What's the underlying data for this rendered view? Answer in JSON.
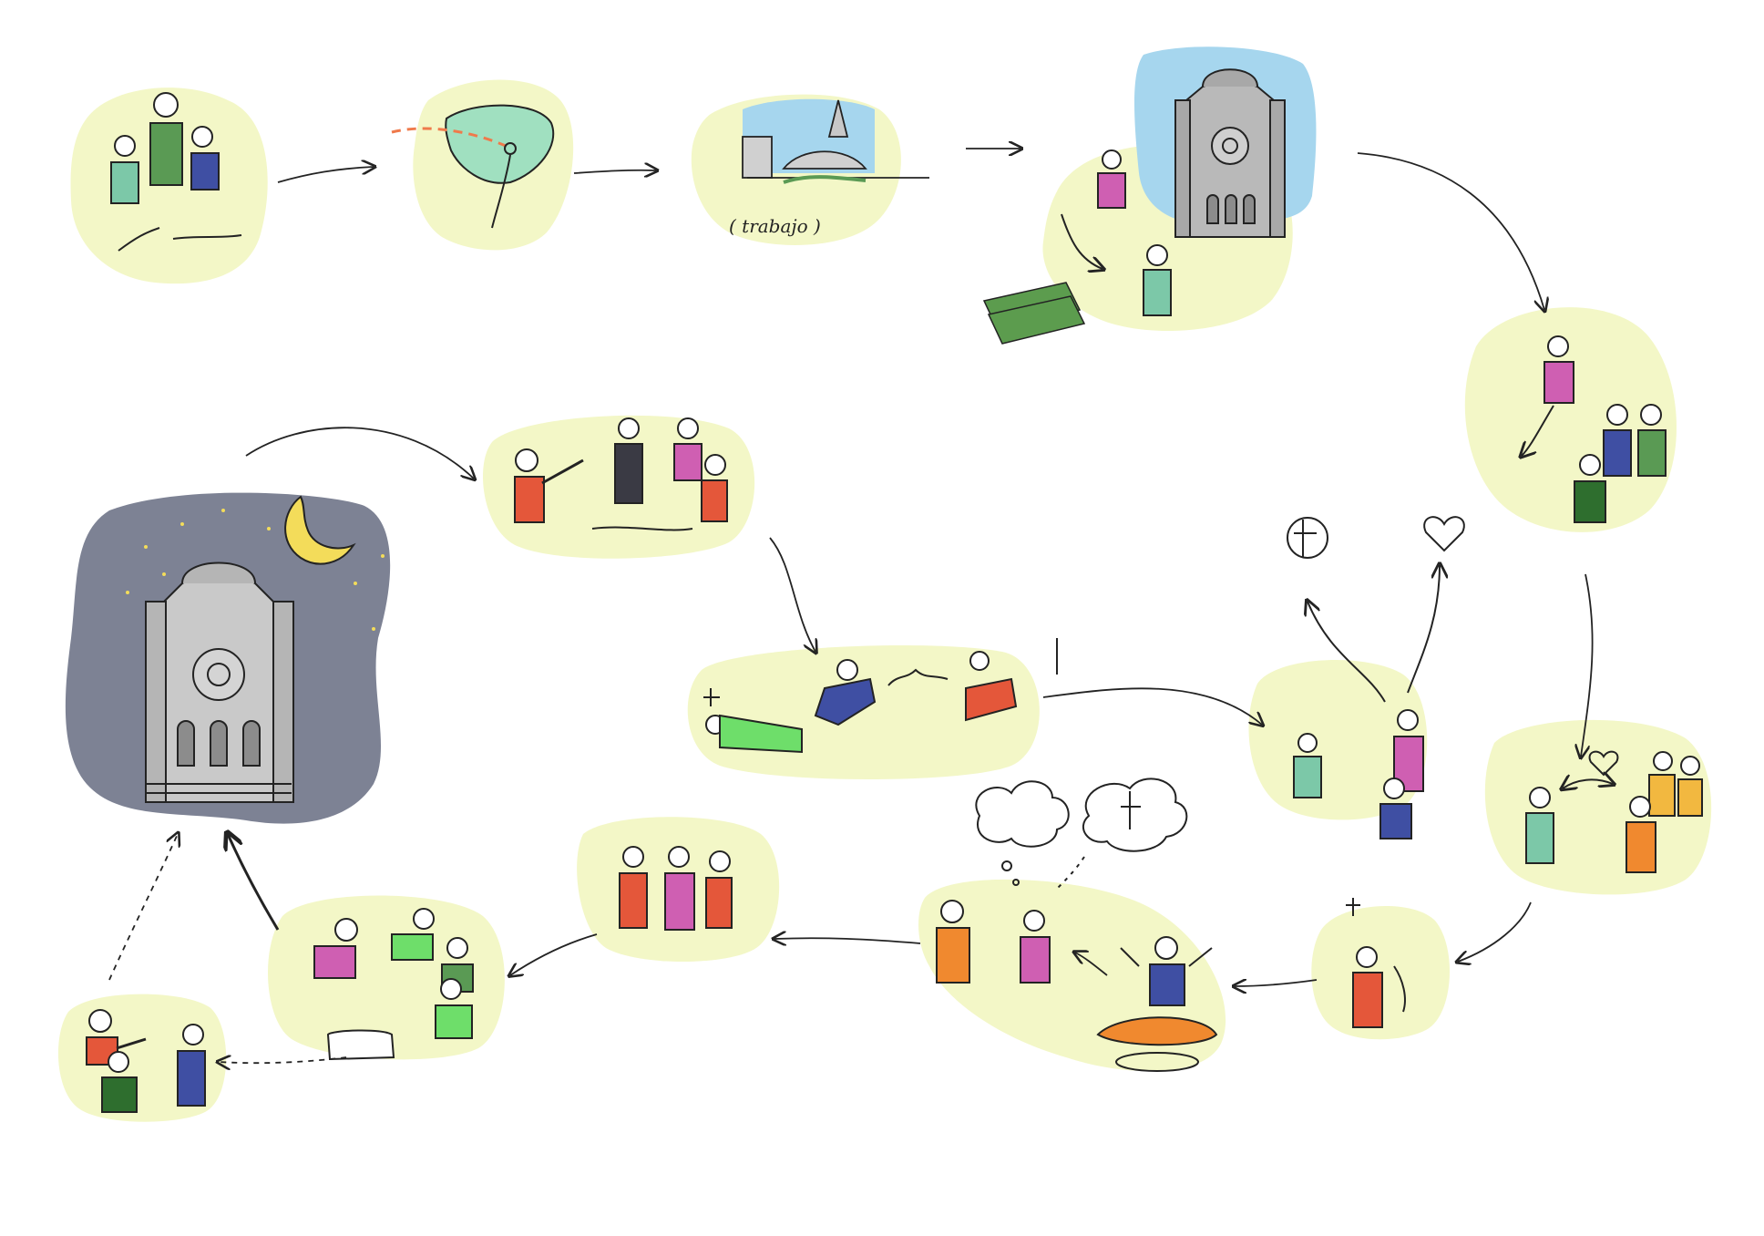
{
  "caption": "( trabajo )",
  "colors": {
    "blob": "#f3f7c7",
    "night": "#7d8294",
    "sky": "#a6d6ee",
    "moon": "#f3dc5a",
    "ink": "#232323",
    "green": "#5a9a54",
    "teal": "#7cc8a8",
    "navy": "#3f4fa3",
    "magenta": "#cf5fb2",
    "red": "#e4573a",
    "orange": "#f0892f",
    "yellow": "#f2b840",
    "lime": "#6ede6a",
    "cash": "#5c9c4e",
    "grey": "#b9b9b9",
    "accent_dash": "#ef7a4b"
  },
  "scenes": [
    {
      "id": "family",
      "icon": "family-group-icon"
    },
    {
      "id": "migration-map",
      "icon": "map-route-icon"
    },
    {
      "id": "city-work",
      "icon": "city-skyline-icon"
    },
    {
      "id": "cathedral-day",
      "icon": "cathedral-icon"
    },
    {
      "id": "meeting",
      "icon": "people-meeting-icon"
    },
    {
      "id": "courtship",
      "icon": "heart-couple-icon"
    },
    {
      "id": "dilemma",
      "icon": "cross-and-heart-icon"
    },
    {
      "id": "confession",
      "icon": "priest-icon"
    },
    {
      "id": "death",
      "icon": "bodies-lying-icon"
    },
    {
      "id": "execution",
      "icon": "firing-squad-icon"
    },
    {
      "id": "cathedral-night",
      "icon": "night-cathedral-icon"
    },
    {
      "id": "dreams",
      "icon": "thought-cloud-icon"
    },
    {
      "id": "trio",
      "icon": "three-figures-icon"
    },
    {
      "id": "grief",
      "icon": "mourners-icon"
    },
    {
      "id": "ending",
      "icon": "duel-icon"
    }
  ]
}
